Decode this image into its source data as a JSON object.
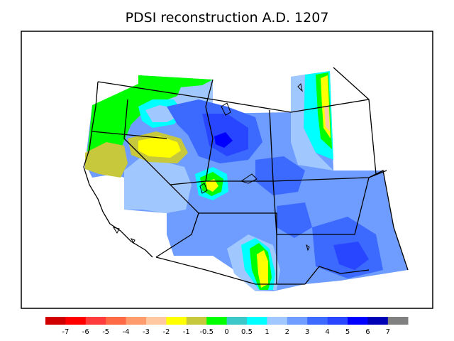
{
  "title": "PDSI reconstruction A.D. 1207",
  "legend": {
    "colors": [
      "#d00000",
      "#ff0000",
      "#ff3c3c",
      "#ff6a46",
      "#ff9c6e",
      "#ffc8a0",
      "#ffff00",
      "#c8c83c",
      "#00ff00",
      "#3cc8c8",
      "#00ffff",
      "#a0c8ff",
      "#6e9cff",
      "#3c6aff",
      "#2846ff",
      "#0000ff",
      "#0000b4",
      "#808080"
    ],
    "labels": [
      "-7",
      "-6",
      "-5",
      "-4",
      "-3",
      "-2",
      "-1",
      "-0.5",
      "0",
      "0.5",
      "1",
      "2",
      "3",
      "4",
      "5",
      "6",
      "7"
    ]
  },
  "map": {
    "colors": {
      "light_blue": "#a0c8ff",
      "mid_blue": "#6e9cff",
      "blue": "#3c6aff",
      "strong_blue": "#2846ff",
      "deep_blue": "#0000ff",
      "green": "#00ff00",
      "yellow": "#ffff00",
      "olive": "#c8c83c",
      "cyan": "#00ffff",
      "teal": "#3cc8c8",
      "orange": "#ffc8a0"
    }
  }
}
